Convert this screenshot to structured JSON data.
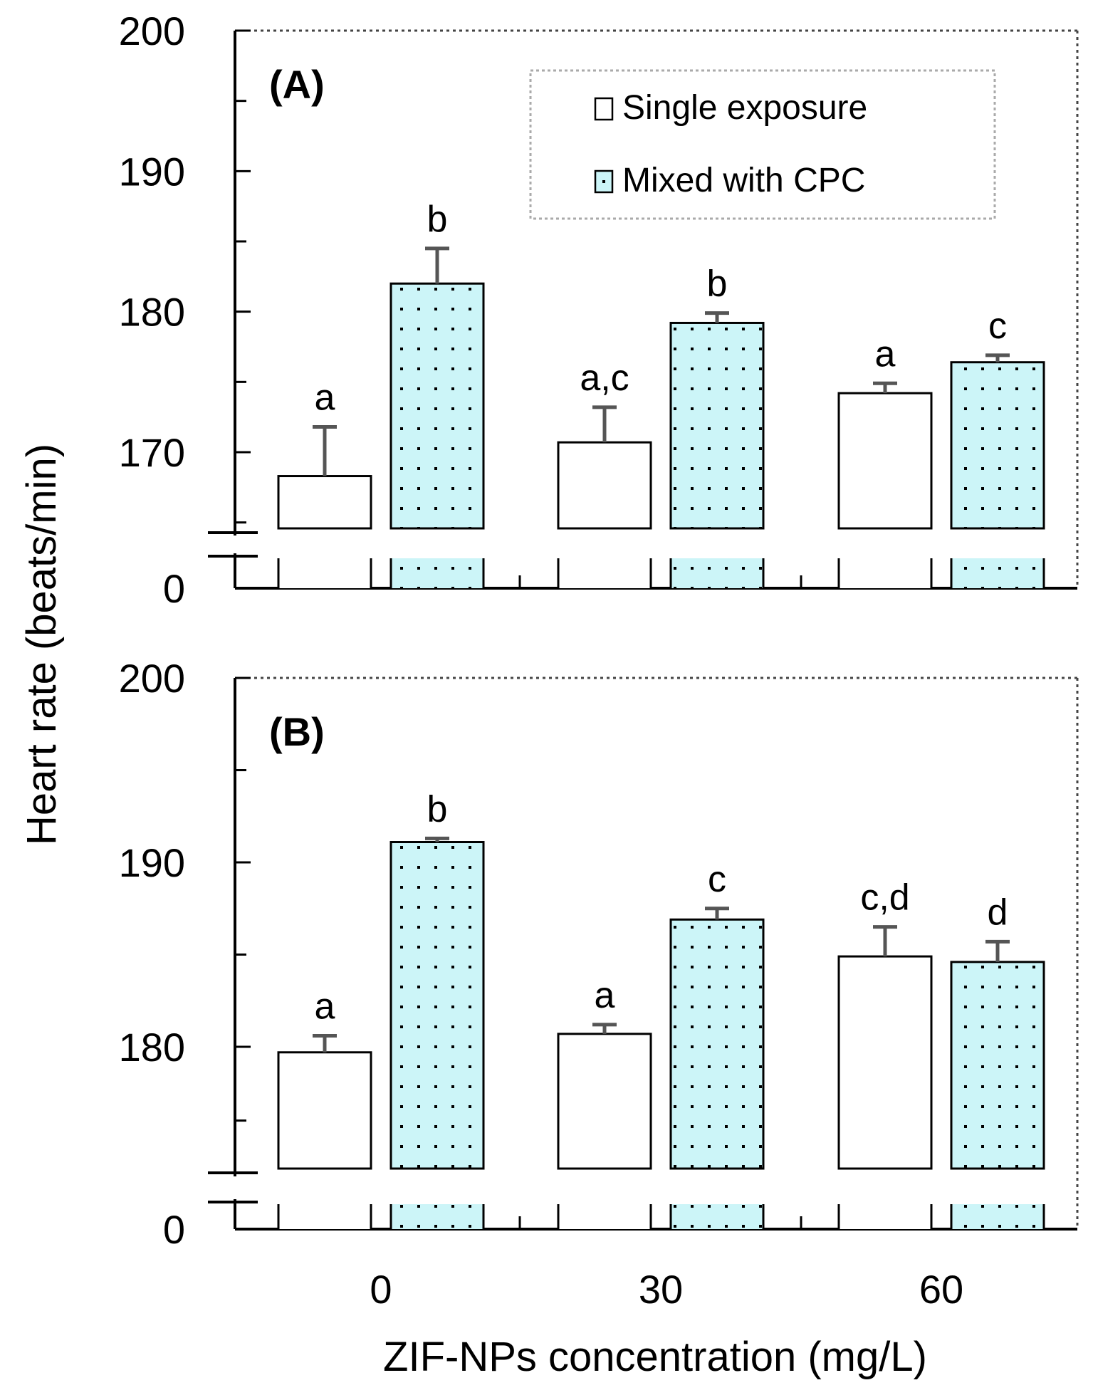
{
  "colors": {
    "mixed_fill": "#ccf5f8",
    "single_fill": "#ffffff",
    "error_bar": "#555555",
    "axis": "#000000",
    "frame_dotted": "#444444",
    "legend_border": "#aaaaaa"
  },
  "chart_data": [
    {
      "type": "bar",
      "panel_label": "(A)",
      "categories": [
        "0",
        "30",
        "60"
      ],
      "series": [
        {
          "name": "Single exposure",
          "values": [
            168.3,
            170.7,
            174.2
          ],
          "errors": [
            3.5,
            2.5,
            0.7
          ],
          "labels": [
            "a",
            "a,c",
            "a"
          ]
        },
        {
          "name": "Mixed with CPC",
          "values": [
            182.0,
            179.2,
            176.4
          ],
          "errors": [
            2.5,
            0.7,
            0.5
          ],
          "labels": [
            "b",
            "b",
            "c"
          ]
        }
      ],
      "ylim": [
        0,
        200
      ],
      "axis_break": [
        0,
        164
      ],
      "yticks": [
        "0",
        "170",
        "180",
        "190",
        "200"
      ],
      "legend": [
        "Single exposure",
        "Mixed with CPC"
      ],
      "legend_position": "top-right"
    },
    {
      "type": "bar",
      "panel_label": "(B)",
      "categories": [
        "0",
        "30",
        "60"
      ],
      "series": [
        {
          "name": "Single exposure",
          "values": [
            179.7,
            180.7,
            184.9
          ],
          "errors": [
            0.9,
            0.5,
            1.6
          ],
          "labels": [
            "a",
            "a",
            "c,d"
          ]
        },
        {
          "name": "Mixed with CPC",
          "values": [
            191.1,
            186.9,
            184.6
          ],
          "errors": [
            0.2,
            0.6,
            1.1
          ],
          "labels": [
            "b",
            "c",
            "d"
          ]
        }
      ],
      "ylim": [
        0,
        200
      ],
      "axis_break": [
        0,
        176
      ],
      "yticks": [
        "0",
        "180",
        "190",
        "200"
      ]
    }
  ],
  "xlabel": "ZIF-NPs concentration  (mg/L)",
  "ylabel": "Heart rate (beats/min)"
}
